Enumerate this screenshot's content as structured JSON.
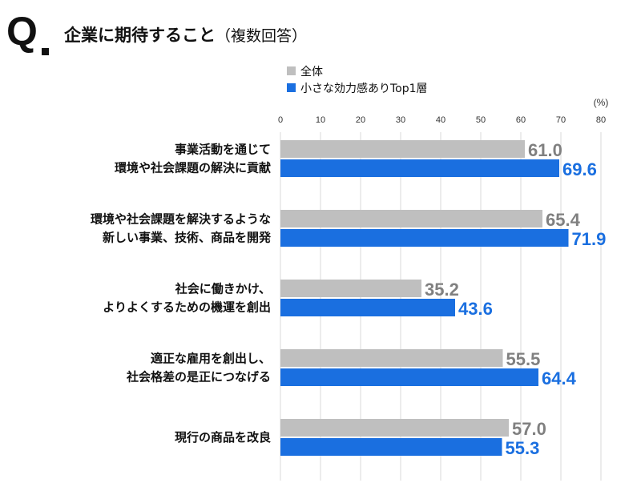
{
  "header": {
    "q_mark": "Q",
    "title": "企業に期待すること",
    "subtitle": "（複数回答）"
  },
  "chart_data": {
    "type": "bar",
    "orientation": "horizontal",
    "unit": "(%)",
    "xlim": [
      0,
      80
    ],
    "ticks": [
      0,
      10,
      20,
      30,
      40,
      50,
      60,
      70,
      80
    ],
    "grid": true,
    "legend_position": "top",
    "categories": [
      [
        "事業活動を通じて",
        "環境や社会課題の解決に貢献"
      ],
      [
        "環境や社会課題を解決するような",
        "新しい事業、技術、商品を開発"
      ],
      [
        "社会に働きかけ、",
        "よりよくするための機運を創出"
      ],
      [
        "適正な雇用を創出し、",
        "社会格差の是正につなげる"
      ],
      [
        "現行の商品を改良"
      ]
    ],
    "series": [
      {
        "name": "全体",
        "color": "#bfbfbf",
        "label_color": "#808080",
        "values": [
          61.0,
          65.4,
          35.2,
          55.5,
          57.0
        ]
      },
      {
        "name": "小さな効力感ありTop1層",
        "color": "#1a6fe0",
        "label_color": "#1a6fe0",
        "values": [
          69.6,
          71.9,
          43.6,
          64.4,
          55.3
        ]
      }
    ]
  }
}
